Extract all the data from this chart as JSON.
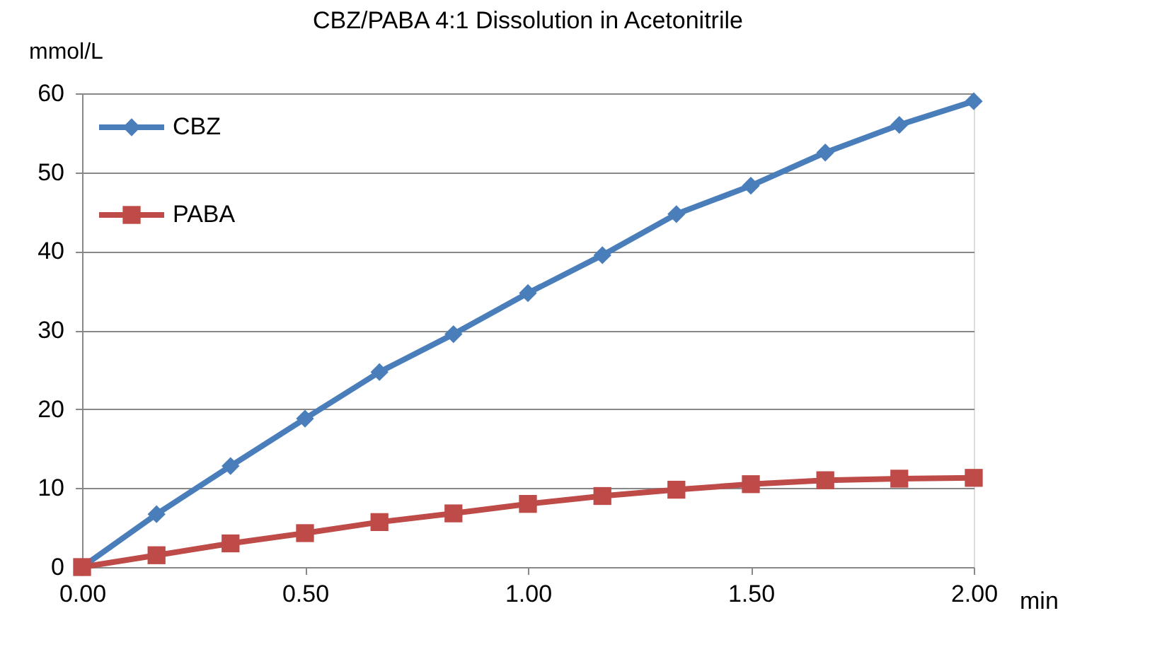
{
  "chart_data": {
    "type": "line",
    "title": "CBZ/PABA 4:1 Dissolution in Acetonitrile",
    "xlabel": "min",
    "ylabel": "mmol/L",
    "x": [
      0,
      0.167,
      0.333,
      0.5,
      0.667,
      0.833,
      1,
      1.167,
      1.333,
      1.5,
      1.667,
      1.833,
      2
    ],
    "series": [
      {
        "name": "CBZ",
        "color": "#4a7ebb",
        "marker": "diamond",
        "values": [
          0,
          6.7,
          12.8,
          18.8,
          24.7,
          29.5,
          34.7,
          39.5,
          44.7,
          48.3,
          52.5,
          56,
          59
        ]
      },
      {
        "name": "PABA",
        "color": "#be4b48",
        "marker": "square",
        "values": [
          0,
          1.5,
          3.0,
          4.3,
          5.7,
          6.8,
          8.0,
          9.0,
          9.8,
          10.5,
          11.0,
          11.2,
          11.3
        ]
      }
    ],
    "xlim": [
      0,
      2
    ],
    "xticks": [
      {
        "value": 0,
        "label": "0.00"
      },
      {
        "value": 0.5,
        "label": "0.50"
      },
      {
        "value": 1,
        "label": "1.00"
      },
      {
        "value": 1.5,
        "label": "1.50"
      },
      {
        "value": 2,
        "label": "2.00"
      }
    ],
    "ylim": [
      0,
      60
    ],
    "yticks": [
      0,
      10,
      20,
      30,
      40,
      50,
      60
    ],
    "grid": "y",
    "legend": "top left",
    "line_style": "solid"
  }
}
